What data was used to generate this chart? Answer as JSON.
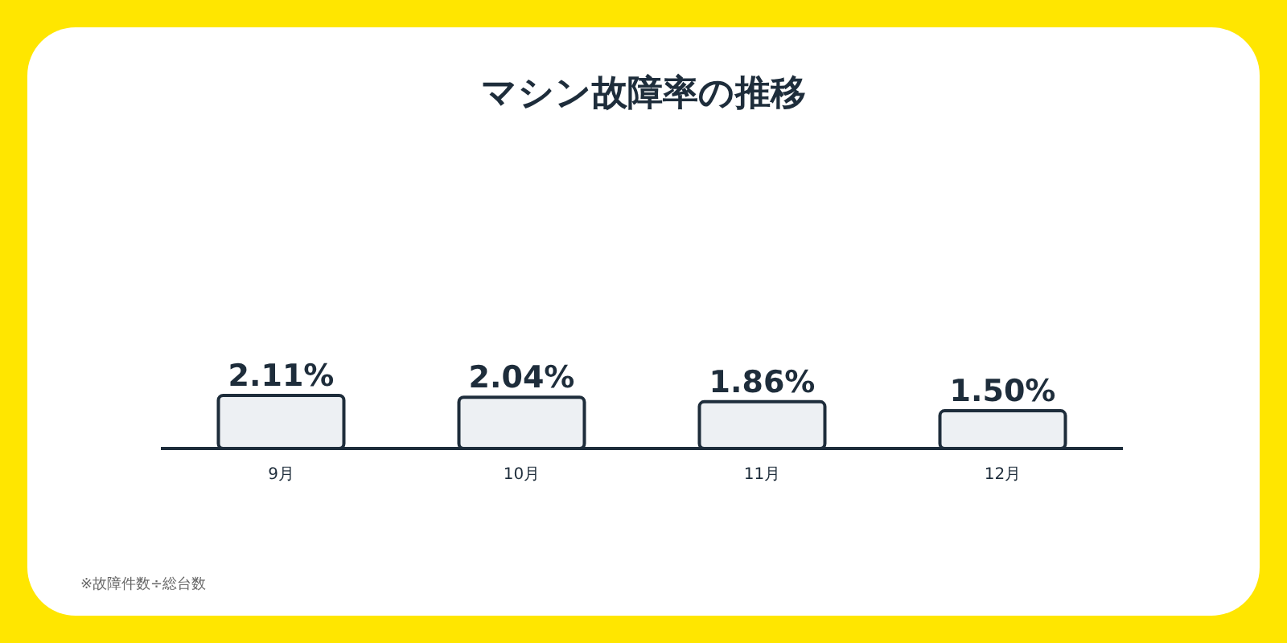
{
  "chart_data": {
    "type": "bar",
    "title": "マシン故障率の推移",
    "categories": [
      "9月",
      "10月",
      "11月",
      "12月"
    ],
    "values": [
      2.11,
      2.04,
      1.86,
      1.5
    ],
    "value_labels": [
      "2.11%",
      "2.04%",
      "1.86%",
      "1.50%"
    ],
    "color": "#edf0f3",
    "annotations": [
      "※故障件数÷総台数"
    ]
  }
}
